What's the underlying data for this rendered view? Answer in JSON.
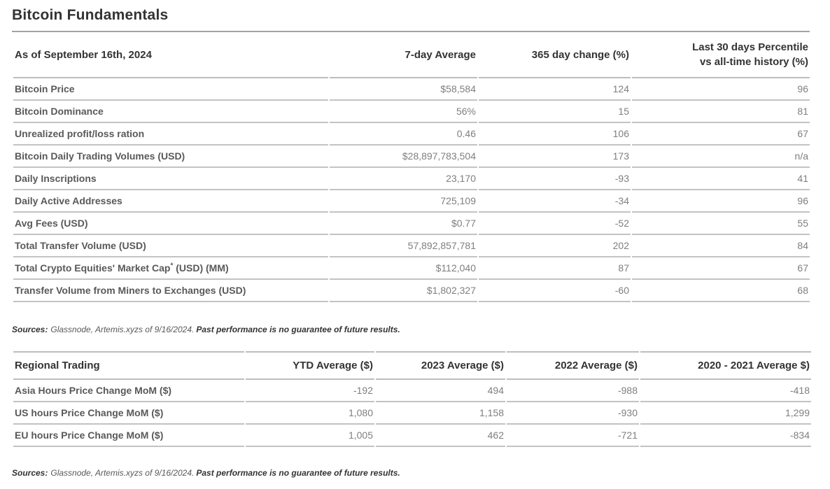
{
  "title": "Bitcoin Fundamentals",
  "fundamentals": {
    "headers": {
      "label": "As of September 16th, 2024",
      "col1": "7-day Average",
      "col2": "365 day change (%)",
      "col3_line1": "Last 30 days Percentile",
      "col3_line2": "vs all-time history (%)"
    },
    "rows": [
      {
        "label": "Bitcoin Price",
        "avg": "$58,584",
        "change": "124",
        "pct": "96"
      },
      {
        "label": "Bitcoin Dominance",
        "avg": "56%",
        "change": "15",
        "pct": "81"
      },
      {
        "label": "Unrealized profit/loss ration",
        "avg": "0.46",
        "change": "106",
        "pct": "67"
      },
      {
        "label": "Bitcoin Daily Trading Volumes (USD)",
        "avg": "$28,897,783,504",
        "change": "173",
        "pct": "n/a"
      },
      {
        "label": "Daily Inscriptions",
        "avg": "23,170",
        "change": "-93",
        "pct": "41"
      },
      {
        "label": "Daily Active Addresses",
        "avg": "725,109",
        "change": "-34",
        "pct": "96"
      },
      {
        "label": "Avg Fees (USD)",
        "avg": "$0.77",
        "change": "-52",
        "pct": "55"
      },
      {
        "label": "Total Transfer Volume (USD)",
        "avg": "57,892,857,781",
        "change": "202",
        "pct": "84"
      },
      {
        "label": "Total Crypto Equities' Market Cap",
        "label_sup": "*",
        "label_suffix": " (USD) (MM)",
        "avg": "$112,040",
        "change": "87",
        "pct": "67"
      },
      {
        "label": "Transfer Volume from Miners to Exchanges (USD)",
        "avg": "$1,802,327",
        "change": "-60",
        "pct": "68"
      }
    ]
  },
  "sources_top": {
    "prefix": "Sources:",
    "body": "Glassnode, Artemis.xyzs of 9/16/2024.",
    "emphasis": "Past performance is no guarantee of future results."
  },
  "regional": {
    "headers": {
      "label": "Regional Trading",
      "col1": "YTD Average ($)",
      "col2": "2023 Average ($)",
      "col3": "2022 Average ($)",
      "col4": "2020 - 2021 Average $)"
    },
    "rows": [
      {
        "label": "Asia Hours Price Change MoM ($)",
        "ytd": "-192",
        "a2023": "494",
        "a2022": "-988",
        "a2020_2021": "-418"
      },
      {
        "label": "US hours Price Change MoM ($)",
        "ytd": "1,080",
        "a2023": "1,158",
        "a2022": "-930",
        "a2020_2021": "1,299"
      },
      {
        "label": "EU hours Price Change MoM ($)",
        "ytd": "1,005",
        "a2023": "462",
        "a2022": "-721",
        "a2020_2021": "-834"
      }
    ]
  },
  "sources_bottom": {
    "prefix": "Sources:",
    "body": "Glassnode, Artemis.xyzs of 9/16/2024.",
    "emphasis": "Past performance is no guarantee of future results."
  }
}
